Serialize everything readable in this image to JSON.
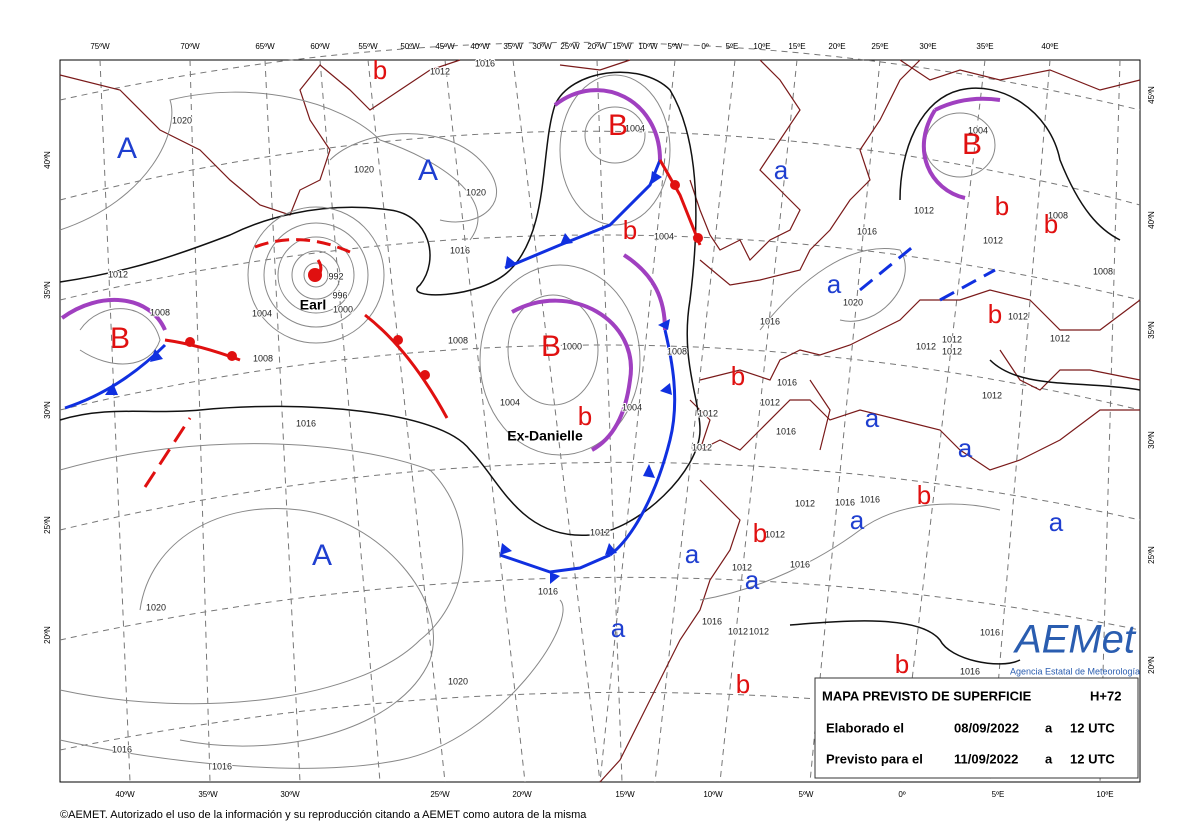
{
  "top_longitudes": [
    "75ºW",
    "70ºW",
    "65ºW",
    "60ºW",
    "55ºW",
    "50ºW",
    "45ºW",
    "40ºW",
    "35ºW",
    "30ºW",
    "25ºW",
    "20ºW",
    "15ºW",
    "10ºW",
    "5ºW",
    "0º",
    "5ºE",
    "10ºE",
    "15ºE",
    "20ºE",
    "25ºE",
    "30ºE",
    "35ºE",
    "40ºE"
  ],
  "bottom_longitudes": [
    "40ºW",
    "35ºW",
    "30ºW",
    "25ºW",
    "20ºW",
    "15ºW",
    "10ºW",
    "5ºW",
    "0º",
    "5ºE",
    "10ºE"
  ],
  "left_latitudes": [
    "40ºN",
    "35ºN",
    "30ºN",
    "25ºN",
    "20ºN"
  ],
  "right_latitudes": [
    "45ºN",
    "40ºN",
    "35ºN",
    "30ºN",
    "25ºN",
    "20ºN"
  ],
  "pressure_centers": [
    {
      "label": "A",
      "color": "#1f3fd0"
    },
    {
      "label": "A",
      "color": "#1f3fd0"
    },
    {
      "label": "B",
      "color": "#e01010"
    },
    {
      "label": "B",
      "color": "#e01010"
    },
    {
      "label": "B",
      "color": "#e01010"
    },
    {
      "label": "B",
      "color": "#e01010"
    },
    {
      "label": "A",
      "color": "#1f3fd0"
    },
    {
      "label": "b",
      "color": "#e01010"
    },
    {
      "label": "b",
      "color": "#e01010"
    },
    {
      "label": "b",
      "color": "#e01010"
    },
    {
      "label": "b",
      "color": "#e01010"
    },
    {
      "label": "b",
      "color": "#e01010"
    },
    {
      "label": "b",
      "color": "#e01010"
    },
    {
      "label": "b",
      "color": "#e01010"
    },
    {
      "label": "b",
      "color": "#e01010"
    },
    {
      "label": "b",
      "color": "#e01010"
    },
    {
      "label": "b",
      "color": "#e01010"
    },
    {
      "label": "b",
      "color": "#e01010"
    },
    {
      "label": "a",
      "color": "#1f3fd0"
    },
    {
      "label": "a",
      "color": "#1f3fd0"
    },
    {
      "label": "a",
      "color": "#1f3fd0"
    },
    {
      "label": "a",
      "color": "#1f3fd0"
    },
    {
      "label": "a",
      "color": "#1f3fd0"
    },
    {
      "label": "a",
      "color": "#1f3fd0"
    },
    {
      "label": "a",
      "color": "#1f3fd0"
    },
    {
      "label": "a",
      "color": "#1f3fd0"
    },
    {
      "label": "a",
      "color": "#1f3fd0"
    }
  ],
  "storm_names": [
    "Earl",
    "Ex-Danielle"
  ],
  "isobar_labels": [
    "1012",
    "1020",
    "1020",
    "1020",
    "1016",
    "1004",
    "992",
    "996",
    "1000",
    "1008",
    "1004",
    "1000",
    "1004",
    "1008",
    "1004",
    "1004",
    "1016",
    "1012",
    "1016",
    "1020",
    "1020",
    "1016",
    "1016",
    "1012",
    "1012",
    "1012",
    "1016",
    "1016",
    "1012",
    "1016",
    "1016",
    "1012",
    "1012",
    "1016",
    "1016",
    "1012",
    "1012",
    "1016",
    "1016",
    "1020",
    "1016",
    "1016",
    "1012",
    "1012",
    "1012",
    "1012",
    "1012",
    "1012",
    "1012",
    "1012",
    "1004",
    "1008",
    "1008",
    "1012",
    "1016",
    "1008",
    "1008"
  ],
  "info_box": {
    "title": "MAPA PREVISTO DE SUPERFICIE",
    "step": "H+72",
    "issued_label": "Elaborado el",
    "issued_date": "08/09/2022",
    "at": "a",
    "issued_time": "12 UTC",
    "valid_label": "Previsto para el",
    "valid_date": "11/09/2022",
    "valid_time": "12 UTC"
  },
  "logo": {
    "name": "AEMet",
    "subtitle": "Agencia Estatal de Meteorología"
  },
  "copyright": "©AEMET. Autorizado el uso de la información y su reproducción citando a AEMET como autora de la misma"
}
